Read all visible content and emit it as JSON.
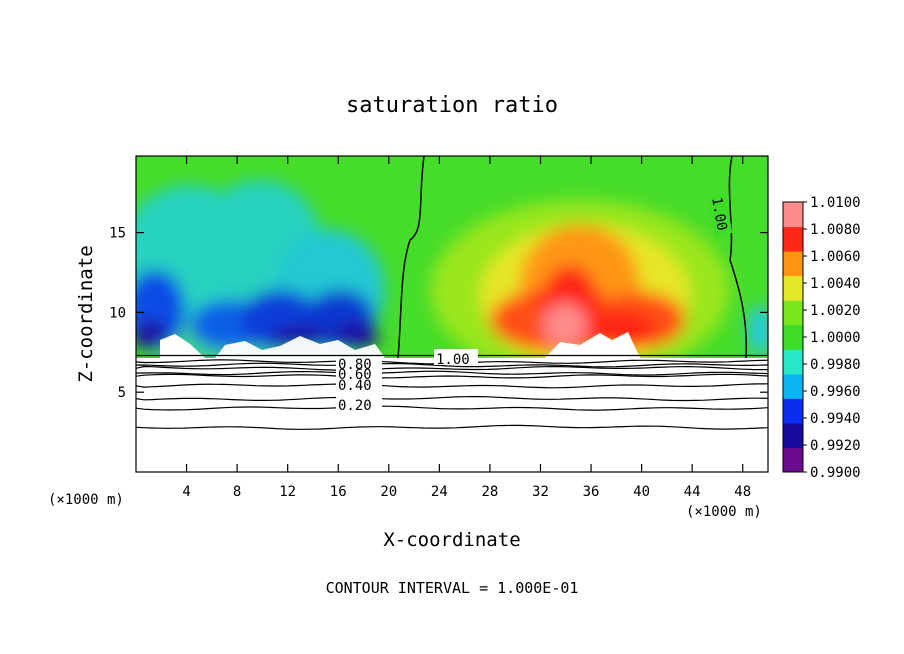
{
  "chart_data": {
    "type": "heatmap",
    "title": "saturation ratio",
    "xlabel": "X-coordinate",
    "ylabel": "Z-coordinate",
    "x_unit": "(×1000 m)",
    "x_ticks": [
      4,
      8,
      12,
      16,
      20,
      24,
      28,
      32,
      36,
      40,
      44,
      48
    ],
    "y_ticks": [
      5,
      10,
      15
    ],
    "xlim": [
      0,
      50
    ],
    "ylim": [
      0,
      19.8
    ],
    "colorbar": {
      "levels": [
        "1.0100",
        "1.0080",
        "1.0060",
        "1.0040",
        "1.0020",
        "1.0000",
        "0.9980",
        "0.9960",
        "0.9940",
        "0.9920",
        "0.9900"
      ],
      "colors": [
        "#6a0a8c",
        "#1a0aa0",
        "#0a2ef0",
        "#0ab4f0",
        "#28e6c8",
        "#3cdc28",
        "#7ae61e",
        "#e6e628",
        "#ff9614",
        "#ff2814",
        "#ff8c8c"
      ]
    },
    "contour_labels": [
      "1.00",
      "1.00",
      "0.80",
      "0.60",
      "0.40",
      "0.20"
    ],
    "contour_lines": [
      {
        "level": "0.20",
        "z": 4.0
      },
      {
        "level": "0.40",
        "z": 5.4
      },
      {
        "level": "0.60",
        "z": 6.0
      },
      {
        "level": "0.80",
        "z": 6.5
      },
      {
        "level": "",
        "z": 2.8
      },
      {
        "level": "",
        "z": 4.6
      },
      {
        "level": "",
        "z": 6.2
      },
      {
        "level": "",
        "z": 6.7
      },
      {
        "level": "",
        "z": 6.9
      }
    ],
    "cloud_base_z": 7.3,
    "contour_interval_text": "CONTOUR INTERVAL = 1.000E-01"
  }
}
